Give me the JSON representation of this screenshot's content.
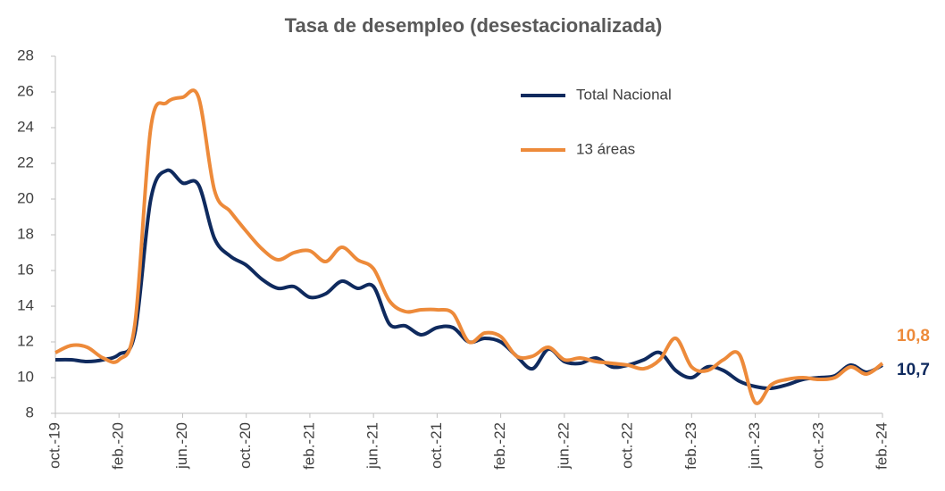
{
  "chart_data": {
    "type": "line",
    "title": "Tasa de desempleo (desestacionalizada)",
    "categories": [
      "oct.-19",
      null,
      null,
      null,
      "feb.-20",
      null,
      null,
      null,
      "jun.-20",
      null,
      null,
      null,
      "oct.-20",
      null,
      null,
      null,
      "feb.-21",
      null,
      null,
      null,
      "jun.-21",
      null,
      null,
      null,
      "oct.-21",
      null,
      null,
      null,
      "feb.-22",
      null,
      null,
      null,
      "jun.-22",
      null,
      null,
      null,
      "oct.-22",
      null,
      null,
      null,
      "feb.-23",
      null,
      null,
      null,
      "jun.-23",
      null,
      null,
      null,
      "oct.-23",
      null,
      null,
      null,
      "feb.-24"
    ],
    "series": [
      {
        "name": "Total Nacional",
        "color": "#0f2a5e",
        "values": [
          11.0,
          11.0,
          10.9,
          11.0,
          11.3,
          12.5,
          20.0,
          21.6,
          20.9,
          20.8,
          17.8,
          16.8,
          16.3,
          15.5,
          15.0,
          15.1,
          14.5,
          14.7,
          15.4,
          15.0,
          15.1,
          13.0,
          12.9,
          12.4,
          12.8,
          12.8,
          12.0,
          12.2,
          12.0,
          11.2,
          10.5,
          11.6,
          10.9,
          10.8,
          11.1,
          10.6,
          10.7,
          11.0,
          11.4,
          10.4,
          10.0,
          10.6,
          10.4,
          9.8,
          9.5,
          9.4,
          9.6,
          9.9,
          10.0,
          10.1,
          10.7,
          10.3,
          10.7
        ],
        "value_labels": [
          null,
          null,
          null,
          null,
          null,
          null,
          null,
          null,
          null,
          null,
          null,
          null,
          null,
          null,
          null,
          null,
          null,
          null,
          null,
          null,
          null,
          null,
          null,
          null,
          null,
          null,
          null,
          null,
          null,
          null,
          null,
          null,
          null,
          null,
          null,
          null,
          null,
          null,
          null,
          null,
          null,
          null,
          null,
          null,
          null,
          null,
          null,
          null,
          null,
          null,
          null,
          null,
          "10,7"
        ]
      },
      {
        "name": "13 áreas",
        "color": "#ed8a3a",
        "values": [
          11.4,
          11.8,
          11.7,
          11.1,
          11.0,
          13.0,
          24.0,
          25.4,
          25.7,
          25.7,
          20.5,
          19.3,
          18.2,
          17.2,
          16.6,
          17.0,
          17.1,
          16.5,
          17.3,
          16.6,
          16.1,
          14.3,
          13.7,
          13.8,
          13.8,
          13.6,
          12.0,
          12.5,
          12.3,
          11.2,
          11.2,
          11.7,
          11.0,
          11.1,
          10.9,
          10.8,
          10.7,
          10.5,
          11.0,
          12.2,
          10.6,
          10.4,
          11.0,
          11.3,
          8.6,
          9.6,
          9.9,
          10.0,
          9.9,
          10.0,
          10.6,
          10.2,
          10.8
        ],
        "value_labels": [
          null,
          null,
          null,
          null,
          null,
          null,
          null,
          null,
          null,
          null,
          null,
          null,
          null,
          null,
          null,
          null,
          null,
          null,
          null,
          null,
          null,
          null,
          null,
          null,
          null,
          null,
          null,
          null,
          null,
          null,
          null,
          null,
          null,
          null,
          null,
          null,
          null,
          null,
          null,
          null,
          null,
          null,
          null,
          null,
          null,
          null,
          null,
          null,
          null,
          null,
          null,
          null,
          "10,8"
        ]
      }
    ],
    "ylim": [
      8,
      28
    ],
    "yticks": [
      8,
      10,
      12,
      14,
      16,
      18,
      20,
      22,
      24,
      26,
      28
    ],
    "grid": false,
    "legend": "upper right"
  }
}
